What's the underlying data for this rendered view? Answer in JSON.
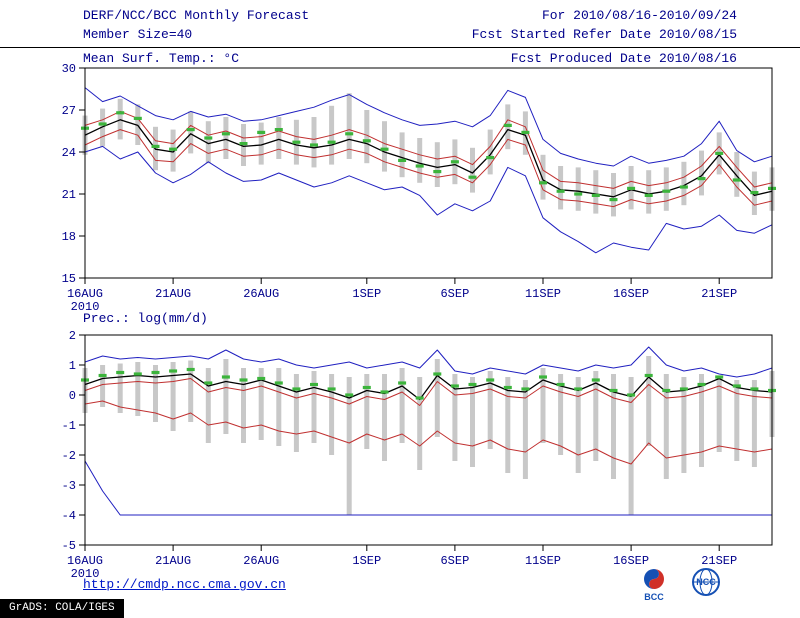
{
  "header": {
    "title": "DERF/NCC/BCC Monthly Forecast",
    "member_size": "Member Size=40",
    "for_range": "For 2010/08/16-2010/09/24",
    "fcst_started": "Fcst Started Refer Date 2010/08/15",
    "fcst_produced": "Fcst Produced Date 2010/08/16"
  },
  "footer": {
    "url": "http://cmdp.ncc.cma.gov.cn",
    "grads_stamp": "GrADS: COLA/IGES",
    "bcc_label": "BCC",
    "ncc_label": "NCC"
  },
  "chart_data": [
    {
      "type": "line",
      "title": "Mean Surf. Temp.: °C",
      "ylim": [
        15,
        30
      ],
      "yticks": [
        15,
        18,
        21,
        24,
        27,
        30
      ],
      "x": {
        "n_points": 40,
        "tick_positions": [
          0,
          5,
          10,
          16,
          21,
          26,
          31,
          36
        ],
        "tick_labels": [
          "16AUG",
          "21AUG",
          "26AUG",
          "1SEP",
          "6SEP",
          "11SEP",
          "16SEP",
          "21SEP"
        ],
        "year_label": "2010"
      },
      "bars": {
        "color": "#c8c8c8",
        "high": [
          26.6,
          27.1,
          27.8,
          27.4,
          25.8,
          25.6,
          26.9,
          26.2,
          26.5,
          26.0,
          26.1,
          26.5,
          26.3,
          26.5,
          27.3,
          28.2,
          27.0,
          26.2,
          25.4,
          25.0,
          24.7,
          24.9,
          24.3,
          25.6,
          27.4,
          26.9,
          23.8,
          23.0,
          22.9,
          22.7,
          22.5,
          23.0,
          22.7,
          22.9,
          23.3,
          24.1,
          25.4,
          24.0,
          22.6,
          22.9
        ],
        "low": [
          23.8,
          24.4,
          24.9,
          24.5,
          22.7,
          22.6,
          23.9,
          23.2,
          23.5,
          23.0,
          23.1,
          23.5,
          23.1,
          22.9,
          23.1,
          23.5,
          23.2,
          22.6,
          22.2,
          21.8,
          21.5,
          21.7,
          21.1,
          22.4,
          24.2,
          23.8,
          20.6,
          19.9,
          19.8,
          19.6,
          19.4,
          19.9,
          19.6,
          19.8,
          20.2,
          20.9,
          22.4,
          20.8,
          19.5,
          19.8
        ]
      },
      "series": [
        {
          "name": "member-max",
          "color": "#2020c0",
          "width": 1,
          "values": [
            28.6,
            27.6,
            28.0,
            27.3,
            26.6,
            26.3,
            26.9,
            26.5,
            26.7,
            26.2,
            26.3,
            26.6,
            26.9,
            27.2,
            27.7,
            28.1,
            27.4,
            26.8,
            26.3,
            25.9,
            26.0,
            26.2,
            25.8,
            26.6,
            28.4,
            27.9,
            24.9,
            23.9,
            23.5,
            23.2,
            23.0,
            23.7,
            23.2,
            23.4,
            23.7,
            24.6,
            26.2,
            24.1,
            23.3,
            23.7
          ]
        },
        {
          "name": "plus-spread",
          "color": "#c03030",
          "width": 1,
          "values": [
            25.9,
            26.3,
            26.9,
            26.4,
            24.8,
            24.6,
            25.9,
            25.2,
            25.5,
            25.0,
            25.1,
            25.5,
            25.1,
            24.9,
            25.2,
            25.6,
            25.2,
            24.6,
            24.2,
            23.8,
            23.5,
            23.7,
            23.1,
            24.4,
            26.3,
            25.8,
            22.7,
            21.9,
            21.8,
            21.6,
            21.4,
            21.9,
            21.6,
            21.8,
            22.2,
            23.0,
            24.4,
            22.9,
            21.5,
            21.8
          ]
        },
        {
          "name": "minus-spread",
          "color": "#c03030",
          "width": 1,
          "values": [
            24.5,
            25.1,
            25.6,
            25.2,
            23.4,
            23.3,
            24.6,
            23.9,
            24.2,
            23.7,
            23.8,
            24.2,
            23.8,
            23.6,
            23.8,
            24.2,
            23.9,
            23.3,
            22.9,
            22.5,
            22.2,
            22.4,
            21.8,
            23.1,
            24.9,
            24.5,
            21.3,
            20.6,
            20.5,
            20.3,
            20.1,
            20.6,
            20.3,
            20.5,
            20.9,
            21.6,
            23.1,
            21.5,
            20.2,
            20.5
          ]
        },
        {
          "name": "member-min",
          "color": "#2020c0",
          "width": 1,
          "values": [
            24.0,
            24.4,
            23.5,
            24.0,
            22.5,
            21.8,
            22.4,
            23.3,
            22.5,
            21.9,
            22.0,
            22.5,
            22.0,
            21.5,
            21.8,
            22.3,
            21.8,
            21.3,
            21.5,
            20.9,
            19.5,
            20.3,
            19.8,
            20.5,
            22.9,
            22.3,
            19.3,
            18.3,
            17.6,
            16.8,
            17.5,
            17.2,
            17.0,
            18.9,
            18.5,
            18.7,
            19.5,
            18.4,
            18.2,
            18.8
          ]
        },
        {
          "name": "ensemble-mean",
          "color": "#000000",
          "width": 1.3,
          "values": [
            25.2,
            25.8,
            26.3,
            25.9,
            24.2,
            24.0,
            25.3,
            24.6,
            24.9,
            24.4,
            24.5,
            24.9,
            24.5,
            24.3,
            24.5,
            24.9,
            24.6,
            24.0,
            23.6,
            23.2,
            22.9,
            23.1,
            22.5,
            23.8,
            25.6,
            25.2,
            22.0,
            21.3,
            21.2,
            21.0,
            20.8,
            21.3,
            21.0,
            21.2,
            21.6,
            22.3,
            23.8,
            22.3,
            20.9,
            21.2
          ]
        },
        {
          "name": "climatology",
          "color": "#3cb43c",
          "style": "dashes",
          "values": [
            25.7,
            26.0,
            26.8,
            26.4,
            24.4,
            24.2,
            25.6,
            25.0,
            25.3,
            24.6,
            25.4,
            25.6,
            24.7,
            24.5,
            24.7,
            25.3,
            24.8,
            24.2,
            23.4,
            23.0,
            22.6,
            23.3,
            22.2,
            23.6,
            25.9,
            25.4,
            21.8,
            21.2,
            21.0,
            20.9,
            20.6,
            21.4,
            20.9,
            21.2,
            21.5,
            22.1,
            23.9,
            22.0,
            21.1,
            21.4
          ]
        }
      ]
    },
    {
      "type": "line",
      "title": "Prec.: log(mm/d)",
      "ylim": [
        -5,
        2
      ],
      "yticks": [
        -5,
        -4,
        -3,
        -2,
        -1,
        0,
        1,
        2
      ],
      "x": {
        "n_points": 40,
        "tick_positions": [
          0,
          5,
          10,
          16,
          21,
          26,
          31,
          36
        ],
        "tick_labels": [
          "16AUG",
          "21AUG",
          "26AUG",
          "1SEP",
          "6SEP",
          "11SEP",
          "16SEP",
          "21SEP"
        ],
        "year_label": "2010"
      },
      "bars": {
        "color": "#c8c8c8",
        "high": [
          0.9,
          1.0,
          1.05,
          1.1,
          1.0,
          1.1,
          1.15,
          0.9,
          1.2,
          0.9,
          0.9,
          0.9,
          0.7,
          0.8,
          0.7,
          0.6,
          0.7,
          0.7,
          0.9,
          0.6,
          1.2,
          0.7,
          0.6,
          0.8,
          0.6,
          0.5,
          0.9,
          0.7,
          0.6,
          0.8,
          0.7,
          0.6,
          1.3,
          0.7,
          0.6,
          0.7,
          0.6,
          0.5,
          0.5,
          0.8
        ],
        "low": [
          -0.6,
          -0.4,
          -0.6,
          -0.7,
          -0.9,
          -1.2,
          -0.9,
          -1.6,
          -1.3,
          -1.6,
          -1.5,
          -1.7,
          -1.9,
          -1.6,
          -2.0,
          -4.0,
          -1.8,
          -2.2,
          -1.6,
          -2.5,
          -1.4,
          -2.2,
          -2.4,
          -1.8,
          -2.6,
          -2.8,
          -1.6,
          -2.0,
          -2.6,
          -2.2,
          -2.8,
          -4.0,
          -1.7,
          -2.8,
          -2.6,
          -2.4,
          -1.9,
          -2.2,
          -2.4,
          -1.4
        ]
      },
      "series": [
        {
          "name": "member-max",
          "color": "#2020c0",
          "width": 1,
          "values": [
            1.1,
            1.3,
            1.2,
            1.25,
            1.2,
            1.25,
            1.3,
            1.2,
            1.5,
            1.2,
            1.1,
            1.2,
            1.0,
            0.9,
            1.0,
            1.1,
            0.9,
            1.0,
            1.1,
            0.9,
            1.5,
            0.8,
            0.7,
            0.9,
            0.8,
            0.7,
            1.0,
            0.9,
            0.8,
            1.0,
            0.9,
            1.0,
            1.6,
            1.0,
            0.8,
            0.9,
            0.7,
            0.6,
            0.7,
            0.9
          ]
        },
        {
          "name": "plus-spread",
          "color": "#c03030",
          "width": 1,
          "values": [
            0.15,
            0.35,
            0.4,
            0.45,
            0.4,
            0.45,
            0.55,
            0.1,
            0.25,
            0.15,
            0.3,
            0.1,
            -0.1,
            0.05,
            -0.1,
            -0.3,
            -0.05,
            -0.15,
            0.1,
            -0.35,
            0.45,
            0.0,
            0.05,
            0.2,
            -0.05,
            -0.1,
            0.3,
            0.1,
            -0.05,
            0.2,
            -0.1,
            -0.25,
            0.35,
            -0.1,
            -0.05,
            0.1,
            0.3,
            0.05,
            -0.05,
            -0.1
          ]
        },
        {
          "name": "minus-spread",
          "color": "#c03030",
          "width": 1,
          "values": [
            -0.3,
            -0.2,
            -0.4,
            -0.5,
            -0.6,
            -0.8,
            -0.6,
            -1.0,
            -0.9,
            -1.1,
            -1.0,
            -1.2,
            -1.3,
            -1.2,
            -1.4,
            -1.6,
            -1.3,
            -1.5,
            -1.3,
            -1.7,
            -1.2,
            -1.6,
            -1.7,
            -1.5,
            -1.8,
            -1.9,
            -1.5,
            -1.7,
            -2.0,
            -1.8,
            -2.1,
            -2.3,
            -1.6,
            -2.1,
            -2.0,
            -1.9,
            -1.7,
            -1.8,
            -1.9,
            -1.8
          ]
        },
        {
          "name": "member-min",
          "color": "#2020c0",
          "width": 1,
          "values": [
            -2.2,
            -3.2,
            -4.0,
            -4.0,
            -4.0,
            -4.0,
            -4.0,
            -4.0,
            -4.0,
            -4.0,
            -4.0,
            -4.0,
            -4.0,
            -4.0,
            -4.0,
            -4.0,
            -4.0,
            -4.0,
            -4.0,
            -4.0,
            -4.0,
            -4.0,
            -4.0,
            -4.0,
            -4.0,
            -4.0,
            -4.0,
            -4.0,
            -4.0,
            -4.0,
            -4.0,
            -4.0,
            -4.0,
            -4.0,
            -4.0,
            -4.0,
            -4.0,
            -4.0,
            -4.0,
            -4.0
          ]
        },
        {
          "name": "ensemble-mean",
          "color": "#000000",
          "width": 1.3,
          "values": [
            0.35,
            0.55,
            0.6,
            0.65,
            0.6,
            0.65,
            0.7,
            0.3,
            0.45,
            0.35,
            0.5,
            0.3,
            0.1,
            0.25,
            0.1,
            -0.1,
            0.15,
            0.05,
            0.3,
            -0.15,
            0.65,
            0.2,
            0.25,
            0.4,
            0.15,
            0.1,
            0.5,
            0.3,
            0.15,
            0.4,
            0.1,
            -0.05,
            0.6,
            0.1,
            0.15,
            0.3,
            0.55,
            0.25,
            0.15,
            0.1
          ]
        },
        {
          "name": "climatology",
          "color": "#3cb43c",
          "style": "dashes",
          "values": [
            0.5,
            0.65,
            0.75,
            0.7,
            0.75,
            0.8,
            0.85,
            0.4,
            0.6,
            0.5,
            0.55,
            0.4,
            0.2,
            0.35,
            0.2,
            0.0,
            0.25,
            0.1,
            0.4,
            -0.1,
            0.7,
            0.3,
            0.35,
            0.5,
            0.25,
            0.2,
            0.6,
            0.35,
            0.2,
            0.5,
            0.15,
            0.0,
            0.65,
            0.15,
            0.2,
            0.35,
            0.6,
            0.3,
            0.2,
            0.15
          ]
        }
      ]
    }
  ]
}
